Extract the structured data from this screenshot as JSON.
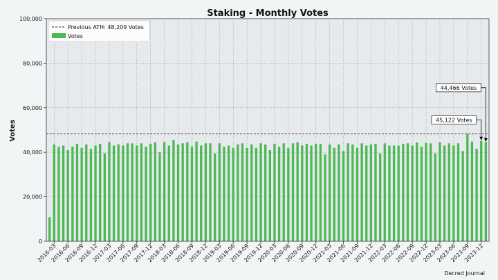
{
  "chart_data": {
    "type": "bar",
    "title": "Staking - Monthly Votes",
    "xlabel": "",
    "ylabel": "Votes",
    "ylim": [
      0,
      100000
    ],
    "yticks": [
      "0",
      "20,000",
      "40,000",
      "60,000",
      "80,000",
      "100,000"
    ],
    "ytick_values": [
      0,
      20000,
      40000,
      60000,
      80000,
      100000
    ],
    "grid": true,
    "legend_position": "top-left",
    "x_tick_labels": [
      "2016-03",
      "2016-06",
      "2016-09",
      "2016-12",
      "2017-03",
      "2017-06",
      "2017-09",
      "2017-12",
      "2018-03",
      "2018-06",
      "2018-09",
      "2018-12",
      "2019-03",
      "2019-06",
      "2019-09",
      "2019-12",
      "2020-03",
      "2020-06",
      "2020-09",
      "2020-12",
      "2021-03",
      "2021-06",
      "2021-09",
      "2021-12",
      "2022-03",
      "2022-06",
      "2022-09",
      "2022-12",
      "2023-03",
      "2023-06",
      "2023-09",
      "2023-12"
    ],
    "series": [
      {
        "name": "Votes",
        "color": "#4cb954",
        "x_start": "2016-02",
        "values": [
          10800,
          43500,
          42500,
          43000,
          41000,
          42500,
          43800,
          42000,
          43500,
          41500,
          43000,
          43800,
          39500,
          44500,
          43000,
          43500,
          43000,
          44000,
          44000,
          43000,
          44000,
          42500,
          43800,
          44500,
          40000,
          44500,
          43000,
          45500,
          43500,
          44000,
          44500,
          42500,
          44800,
          43000,
          44000,
          44000,
          39500,
          44000,
          42500,
          43000,
          42000,
          43500,
          44000,
          42000,
          43500,
          42000,
          44000,
          43500,
          41000,
          43800,
          42500,
          44000,
          42000,
          44000,
          44500,
          43000,
          43800,
          43000,
          43800,
          43800,
          39000,
          43500,
          42000,
          43500,
          40500,
          44000,
          43500,
          42000,
          44000,
          43000,
          43500,
          43800,
          39500,
          44000,
          43000,
          43000,
          43000,
          43800,
          44000,
          43000,
          44300,
          42500,
          44200,
          44000,
          39500,
          44500,
          43000,
          44000,
          43000,
          44000,
          40500,
          48209,
          44800,
          41500,
          45122,
          44466
        ]
      }
    ],
    "reference_line": {
      "label": "Previous ATH: 48,209 Votes",
      "value": 48209,
      "color": "#222222",
      "style": "dashed"
    },
    "annotations": [
      {
        "text": "44,466 Votes",
        "month": "2024-01",
        "value": 44466,
        "label_value": 69000
      },
      {
        "text": "45,122 Votes",
        "month": "2023-12",
        "value": 45122,
        "label_value": 54500
      }
    ],
    "credit": "Decred Journal",
    "colors": {
      "plot_bg": "#e6eaed",
      "page_bg": "#f2f5f6",
      "grid": "#888888"
    }
  }
}
